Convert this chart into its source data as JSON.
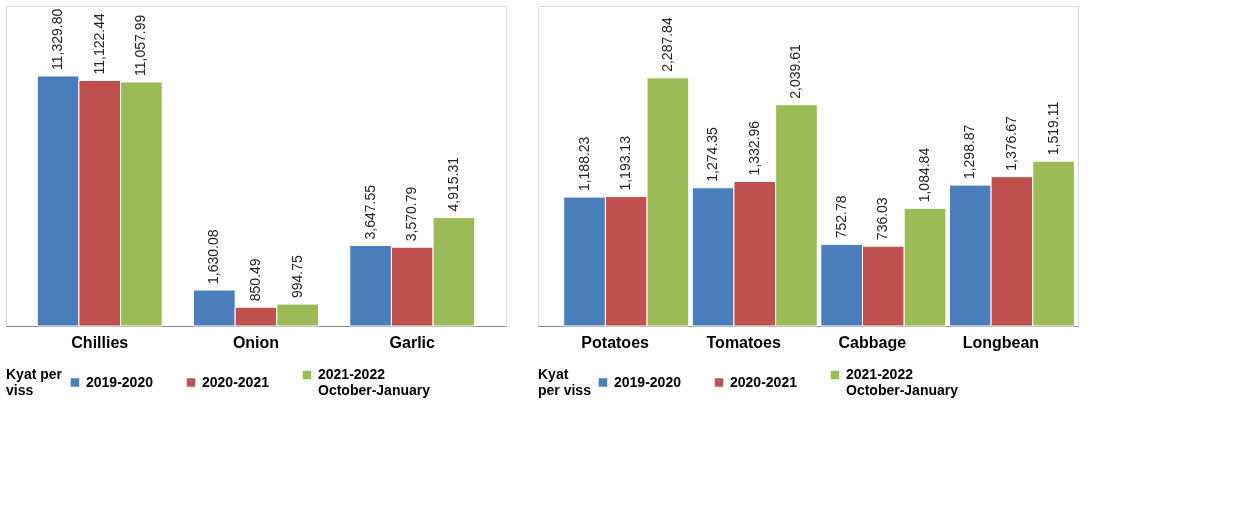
{
  "chart_data": [
    {
      "type": "bar",
      "categories": [
        "Chillies",
        "Onion",
        "Garlic"
      ],
      "legend_title": "Kyat per\nviss",
      "legend": "bottom",
      "tick_labels": "x",
      "ylim": [
        0,
        14500
      ],
      "series": [
        {
          "name": "2019-2020",
          "color": "#4a7ebb",
          "values": [
            11329.8,
            1630.08,
            3647.55
          ],
          "value_labels": [
            "11,329.80",
            "1,630.08",
            "3,647.55"
          ]
        },
        {
          "name": "2020-2021",
          "color": "#c0504d",
          "values": [
            11122.44,
            850.49,
            3570.79
          ],
          "value_labels": [
            "11,122.44",
            "850.49",
            "3,570.79"
          ]
        },
        {
          "name": "2021-2022\nOctober-January",
          "color": "#9bbb59",
          "values": [
            11057.99,
            994.75,
            4915.31
          ],
          "value_labels": [
            "11,057.99",
            "994.75",
            "4,915.31"
          ]
        }
      ]
    },
    {
      "type": "bar",
      "categories": [
        "Potatoes",
        "Tomatoes",
        "Cabbage",
        "Longbean"
      ],
      "legend_title": "Kyat\nper viss",
      "legend": "bottom",
      "tick_labels": "x",
      "ylim": [
        0,
        2950
      ],
      "series": [
        {
          "name": "2019-2020",
          "color": "#4a7ebb",
          "values": [
            1188.23,
            1274.35,
            752.78,
            1298.87
          ],
          "value_labels": [
            "1,188.23",
            "1,274.35",
            "752.78",
            "1,298.87"
          ]
        },
        {
          "name": "2020-2021",
          "color": "#c0504d",
          "values": [
            1193.13,
            1332.96,
            736.03,
            1376.67
          ],
          "value_labels": [
            "1,193.13",
            "1,332.96",
            "736.03",
            "1,376.67"
          ]
        },
        {
          "name": "2021-2022\nOctober-January",
          "color": "#9bbb59",
          "values": [
            2287.84,
            2039.61,
            1084.84,
            1519.11
          ],
          "value_labels": [
            "2,287.84",
            "2,039.61",
            "1,084.84",
            "1,519.11"
          ]
        }
      ]
    }
  ]
}
